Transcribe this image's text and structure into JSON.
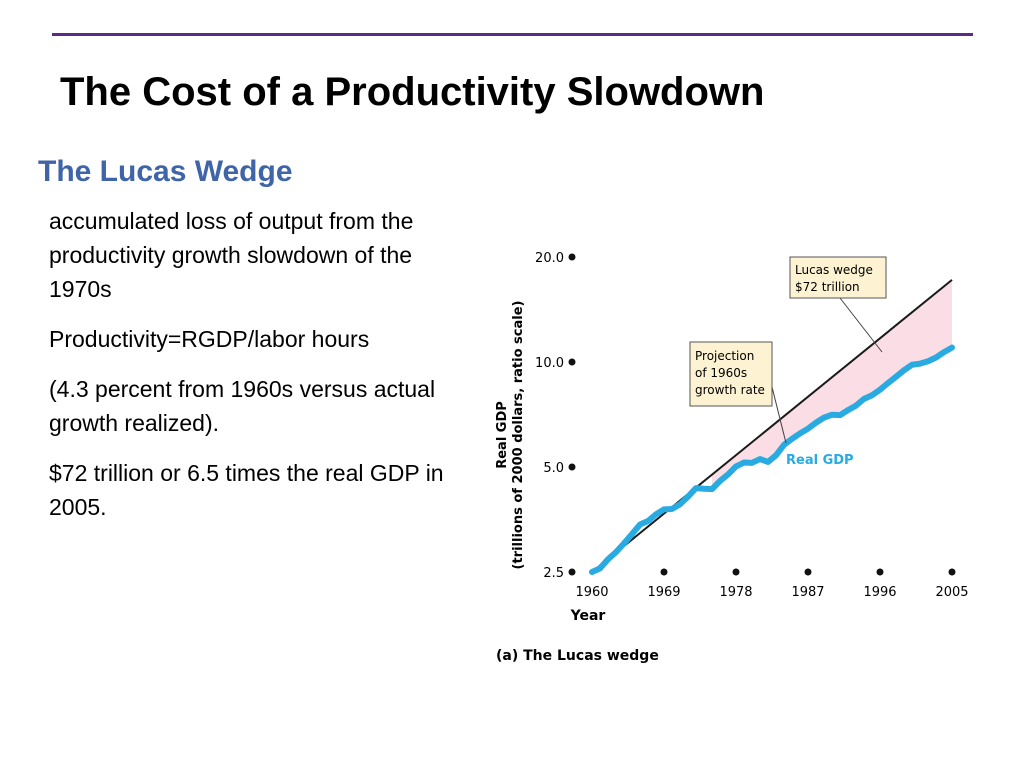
{
  "slide": {
    "title": "The Cost of a Productivity Slowdown",
    "subtitle": "The Lucas Wedge",
    "bullets": [
      "accumulated loss of output from the productivity growth slowdown of the 1970s",
      "Productivity=RGDP/labor hours",
      "(4.3 percent from 1960s versus actual growth realized).",
      "$72 trillion or 6.5 times the real GDP in 2005."
    ]
  },
  "chart_data": {
    "type": "line",
    "title": "",
    "caption": "(a) The Lucas wedge",
    "xlabel": "Year",
    "ylabel_line1": "Real GDP",
    "ylabel_line2": "(trillions of 2000 dollars, ratio scale)",
    "y_scale": "log",
    "ylim": [
      2.5,
      20.0
    ],
    "xlim": [
      1960,
      2005
    ],
    "x_ticks": [
      1960,
      1969,
      1978,
      1987,
      1996,
      2005
    ],
    "x_tick_labels": [
      "1960",
      "1969",
      "1978",
      "1987",
      "1996",
      "2005"
    ],
    "y_ticks": [
      2.5,
      5.0,
      10.0,
      20.0
    ],
    "y_tick_labels": [
      "2.5",
      "5.0",
      "10.0",
      "20.0"
    ],
    "series": [
      {
        "name": "Real GDP",
        "color": "#29abe2",
        "x": [
          1960,
          1961,
          1962,
          1963,
          1964,
          1965,
          1966,
          1967,
          1968,
          1969,
          1970,
          1971,
          1972,
          1973,
          1974,
          1975,
          1976,
          1977,
          1978,
          1979,
          1980,
          1981,
          1982,
          1983,
          1984,
          1985,
          1986,
          1987,
          1988,
          1989,
          1990,
          1991,
          1992,
          1993,
          1994,
          1995,
          1996,
          1997,
          1998,
          1999,
          2000,
          2001,
          2002,
          2003,
          2004,
          2005
        ],
        "y": [
          2.5,
          2.56,
          2.72,
          2.85,
          3.02,
          3.21,
          3.42,
          3.5,
          3.66,
          3.78,
          3.79,
          3.91,
          4.11,
          4.35,
          4.33,
          4.32,
          4.56,
          4.76,
          5.02,
          5.15,
          5.14,
          5.27,
          5.17,
          5.4,
          5.79,
          6.02,
          6.24,
          6.44,
          6.7,
          6.93,
          7.06,
          7.04,
          7.28,
          7.5,
          7.84,
          8.03,
          8.33,
          8.7,
          9.07,
          9.47,
          9.82,
          9.89,
          10.05,
          10.3,
          10.67,
          11.0
        ]
      },
      {
        "name": "Projection of 1960s growth rate",
        "color": "#1a1a1a",
        "x": [
          1960,
          2005
        ],
        "y": [
          2.5,
          17.2
        ]
      }
    ],
    "annotations": [
      {
        "label": "Real GDP",
        "color": "#29abe2"
      },
      {
        "label_lines": [
          "Projection",
          "of 1960s",
          "growth rate"
        ]
      },
      {
        "label_lines": [
          "Lucas wedge",
          "$72 trillion"
        ]
      }
    ],
    "wedge_fill": "#fbdde6",
    "annotation_box_fill": "#fdf3d2"
  }
}
